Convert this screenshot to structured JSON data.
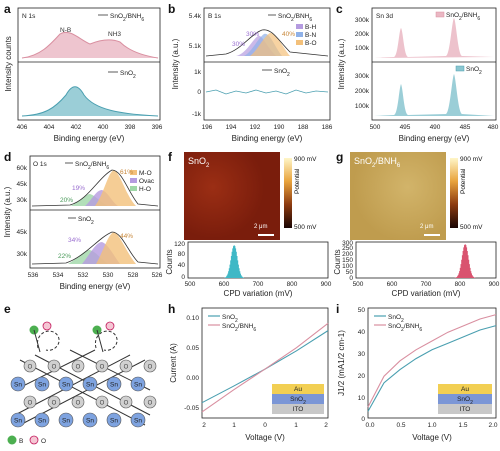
{
  "panels": {
    "a": {
      "label": "a",
      "top_tag": "N 1s",
      "legend_top": "SnO2/BNH6",
      "legend_bottom": "SnO2",
      "peak1": "N-B",
      "peak2": "NH3",
      "xlabel": "Binding energy (eV)",
      "ylabel": "Intensity counts",
      "xticks": [
        "406",
        "404",
        "402",
        "400",
        "398",
        "396"
      ]
    },
    "b": {
      "label": "b",
      "top_tag": "B 1s",
      "legend_top": "SnO2/BNH6",
      "legend_bottom": "SnO2",
      "comp": [
        "B-H",
        "B-N",
        "B-O"
      ],
      "pct": [
        "30%",
        "30%",
        "40%"
      ],
      "xlabel": "Binding energy (eV)",
      "ylabel": "Intensity (a.u.)",
      "xticks": [
        "196",
        "194",
        "192",
        "190",
        "188",
        "186"
      ],
      "yticks_top": [
        "5.4k",
        "5.1k"
      ],
      "yticks_bottom": [
        "1k",
        "0",
        "-1k"
      ]
    },
    "c": {
      "label": "c",
      "top_tag": "Sn 3d",
      "legend_top": "SnO2/BNH6",
      "legend_bottom": "SnO2",
      "xlabel": "Binding energy (eV)",
      "ylabel": "Intensity (a.u.)",
      "xticks": [
        "500",
        "495",
        "490",
        "485",
        "480"
      ],
      "yticks_top": [
        "300k",
        "200k",
        "100k"
      ],
      "yticks_bottom": [
        "300k",
        "200k",
        "100k"
      ]
    },
    "d": {
      "label": "d",
      "top_tag": "O 1s",
      "legend_top": "SnO2/BNH6",
      "legend_bottom": "SnO2",
      "comp": [
        "M-O",
        "Ovac",
        "H-O"
      ],
      "pct_top": [
        "20%",
        "19%",
        "61%"
      ],
      "pct_bottom": [
        "22%",
        "34%",
        "44%"
      ],
      "xlabel": "Binding energy (eV)",
      "ylabel": "Intensity (a.u.)",
      "xticks": [
        "536",
        "534",
        "532",
        "530",
        "528",
        "526"
      ],
      "yticks_top": [
        "60k",
        "45k",
        "30k"
      ],
      "yticks_bottom": [
        "45k",
        "30k"
      ]
    },
    "f": {
      "label": "f",
      "title": "SnO2",
      "scale_bar": "2 μm",
      "cb_top": "900 mV",
      "cb_bottom": "500 mV",
      "cb_title": "Potential",
      "xlabel": "CPD variation (mV)",
      "ylabel": "Counts",
      "xticks": [
        "500",
        "600",
        "700",
        "800",
        "900"
      ],
      "yticks": [
        "120",
        "80",
        "40",
        "0"
      ]
    },
    "g": {
      "label": "g",
      "title": "SnO2/BNH6",
      "scale_bar": "2 μm",
      "cb_top": "900 mV",
      "cb_bottom": "500 mV",
      "cb_title": "Potential",
      "xlabel": "CPD variation (mV)",
      "ylabel": "Counts",
      "xticks": [
        "500",
        "600",
        "700",
        "800",
        "900"
      ],
      "yticks": [
        "300",
        "250",
        "200",
        "150",
        "100",
        "50",
        "0"
      ]
    },
    "e": {
      "label": "e",
      "atom_sn": "Sn",
      "atom_o": "O",
      "legend_b": "B",
      "legend_o": "O"
    },
    "h": {
      "label": "h",
      "legend": [
        "SnO2",
        "SnO2/BNH6"
      ],
      "stack": [
        "Au",
        "SnO2",
        "ITO"
      ],
      "xlabel": "Voltage (V)",
      "ylabel": "Current (A)",
      "xticks": [
        "2",
        "1",
        "0",
        "1",
        "2"
      ],
      "yticks": [
        "0.10",
        "0.05",
        "0.00",
        "-0.05"
      ]
    },
    "i": {
      "label": "i",
      "legend": [
        "SnO2",
        "SnO2/BNH6"
      ],
      "stack": [
        "Au",
        "SnO2",
        "ITO"
      ],
      "xlabel": "Voltage (V)",
      "ylabel": "J1/2 (mA1/2 cm-1)",
      "xticks": [
        "0.0",
        "0.5",
        "1.0",
        "1.5",
        "2.0"
      ],
      "yticks": [
        "50",
        "40",
        "30",
        "20",
        "10",
        "0"
      ]
    }
  },
  "colors": {
    "pink": "#d98fa0",
    "pinkfill": "#eab7c3",
    "teal": "#4a9fb0",
    "tealfill": "#8ac6d0",
    "purple": "#b59be0",
    "blue": "#8fb1e8",
    "orange": "#f3c07a",
    "green": "#9fd7a7",
    "gold": "#f2cf53",
    "slate": "#7b96d6",
    "grey": "#c8c8c8"
  },
  "chart_data": [
    {
      "panel": "h",
      "type": "line",
      "x": [
        -2,
        -1,
        0,
        1,
        2
      ],
      "series": [
        {
          "name": "SnO2",
          "values": [
            -0.055,
            -0.028,
            0.0,
            0.03,
            0.063
          ]
        },
        {
          "name": "SnO2/BNH6",
          "values": [
            -0.07,
            -0.034,
            0.0,
            0.035,
            0.075
          ]
        }
      ],
      "xlim": [
        -2,
        2
      ],
      "ylim": [
        -0.08,
        0.1
      ],
      "xlabel": "Voltage (V)",
      "ylabel": "Current (A)"
    },
    {
      "panel": "i",
      "type": "line",
      "x": [
        0,
        0.25,
        0.5,
        0.75,
        1.0,
        1.25,
        1.5,
        1.75,
        2.0
      ],
      "series": [
        {
          "name": "SnO2",
          "values": [
            3,
            16,
            22,
            27,
            31,
            34,
            37,
            40,
            42
          ]
        },
        {
          "name": "SnO2/BNH6",
          "values": [
            5,
            19,
            26,
            31,
            35,
            39,
            42,
            45,
            47
          ]
        }
      ],
      "xlim": [
        0,
        2
      ],
      "ylim": [
        0,
        50
      ],
      "xlabel": "Voltage (V)",
      "ylabel": "J1/2 (mA1/2 cm-1)"
    },
    {
      "panel": "f",
      "type": "bar",
      "xlim": [
        500,
        900
      ],
      "ylim": [
        0,
        130
      ],
      "peak_center": 632,
      "peak_height": 118,
      "xlabel": "CPD variation (mV)",
      "ylabel": "Counts"
    },
    {
      "panel": "g",
      "type": "bar",
      "xlim": [
        500,
        900
      ],
      "ylim": [
        0,
        320
      ],
      "peak_center": 812,
      "peak_height": 300,
      "xlabel": "CPD variation (mV)",
      "ylabel": "Counts"
    }
  ]
}
